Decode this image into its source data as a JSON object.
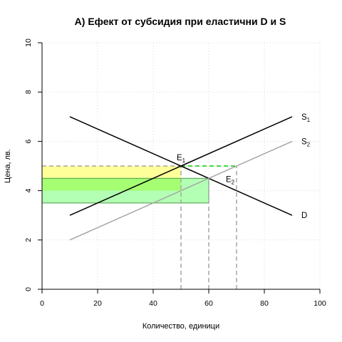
{
  "chart_data": {
    "type": "line",
    "title": "A) Ефект от субсидия при еластични D и S",
    "xlabel": "Количество, единици",
    "ylabel": "Цена, лв.",
    "xlim": [
      0,
      100
    ],
    "ylim": [
      0,
      10
    ],
    "x_ticks": [
      0,
      20,
      40,
      60,
      80,
      100
    ],
    "y_ticks": [
      0,
      2,
      4,
      6,
      8,
      10
    ],
    "grid": true,
    "series": [
      {
        "name": "D",
        "label_main": "D",
        "label_sub": "",
        "color": "#000000",
        "x": [
          10,
          90
        ],
        "y": [
          7,
          3
        ]
      },
      {
        "name": "S1",
        "label_main": "S",
        "label_sub": "1",
        "color": "#000000",
        "x": [
          10,
          90
        ],
        "y": [
          3,
          7
        ]
      },
      {
        "name": "S2",
        "label_main": "S",
        "label_sub": "2",
        "color": "#a6a6a6",
        "x": [
          10,
          90
        ],
        "y": [
          2,
          6
        ]
      }
    ],
    "regions": [
      {
        "color": "#ffff99",
        "x": [
          0,
          50
        ],
        "y": [
          4.5,
          5
        ]
      },
      {
        "color": "#b3ffb3",
        "x": [
          0,
          60
        ],
        "y": [
          3.5,
          4.5
        ]
      },
      {
        "color": "#a6ff73",
        "x": [
          0,
          50
        ],
        "y": [
          4,
          4.5
        ]
      }
    ],
    "points": [
      {
        "label_main": "E",
        "label_sub": "1",
        "x": 50,
        "y": 5
      },
      {
        "label_main": "E",
        "label_sub": "2",
        "x": 60,
        "y": 4.5
      }
    ],
    "reference_lines": [
      {
        "x": [
          0,
          50
        ],
        "y": [
          5,
          5
        ],
        "color": "#a6a6a6"
      },
      {
        "x": [
          50,
          70
        ],
        "y": [
          5,
          5
        ],
        "color": "#00cc00"
      },
      {
        "x": [
          50,
          50
        ],
        "y": [
          0,
          5
        ],
        "color": "#a6a6a6"
      },
      {
        "x": [
          60,
          60
        ],
        "y": [
          0,
          4.5
        ],
        "color": "#a6a6a6"
      },
      {
        "x": [
          70,
          70
        ],
        "y": [
          0,
          5
        ],
        "color": "#a6a6a6"
      }
    ]
  }
}
